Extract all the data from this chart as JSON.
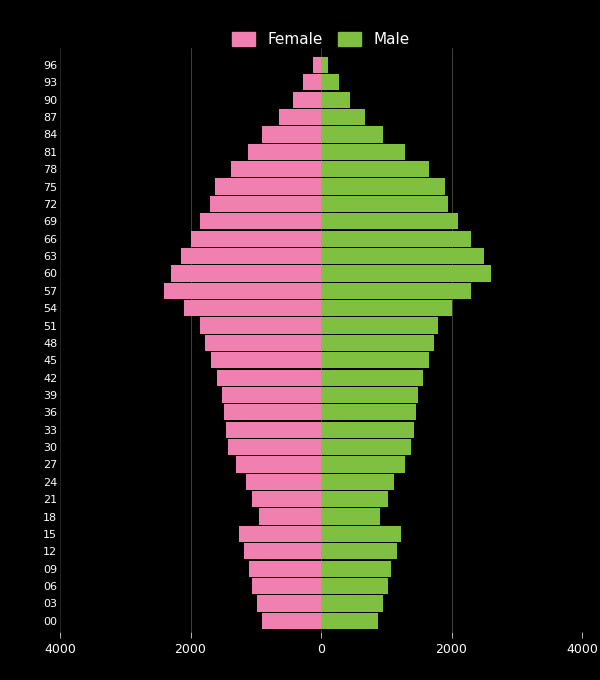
{
  "ages": [
    0,
    3,
    6,
    9,
    12,
    15,
    18,
    21,
    24,
    27,
    30,
    33,
    36,
    39,
    42,
    45,
    48,
    51,
    54,
    57,
    60,
    63,
    66,
    69,
    72,
    75,
    78,
    81,
    84,
    87,
    90,
    93,
    96
  ],
  "age_labels": [
    "00",
    "03",
    "06",
    "09",
    "12",
    "15",
    "18",
    "21",
    "24",
    "27",
    "30",
    "33",
    "36",
    "39",
    "42",
    "45",
    "48",
    "51",
    "54",
    "57",
    "60",
    "63",
    "66",
    "69",
    "72",
    "75",
    "78",
    "81",
    "84",
    "87",
    "90",
    "93",
    "96"
  ],
  "female": [
    -900,
    -980,
    -1050,
    -1100,
    -1180,
    -1250,
    -950,
    -1050,
    -1150,
    -1300,
    -1420,
    -1450,
    -1480,
    -1520,
    -1600,
    -1680,
    -1780,
    -1850,
    -2100,
    -2400,
    -2300,
    -2150,
    -2000,
    -1850,
    -1700,
    -1620,
    -1380,
    -1120,
    -900,
    -650,
    -430,
    -270,
    -120
  ],
  "male": [
    870,
    950,
    1030,
    1070,
    1160,
    1230,
    900,
    1020,
    1120,
    1280,
    1380,
    1430,
    1450,
    1490,
    1570,
    1650,
    1730,
    1800,
    2000,
    2300,
    2600,
    2500,
    2300,
    2100,
    1950,
    1900,
    1650,
    1280,
    950,
    680,
    450,
    270,
    110
  ],
  "female_color": "#f080b0",
  "male_color": "#80c040",
  "background_color": "#000000",
  "text_color": "#ffffff",
  "grid_color": "#ffffff",
  "xlim": [
    -4000,
    4000
  ],
  "xticks": [
    -4000,
    -2000,
    0,
    2000,
    4000
  ],
  "xtick_labels": [
    "-4000",
    "-2000",
    "0",
    "2000",
    "4000"
  ]
}
